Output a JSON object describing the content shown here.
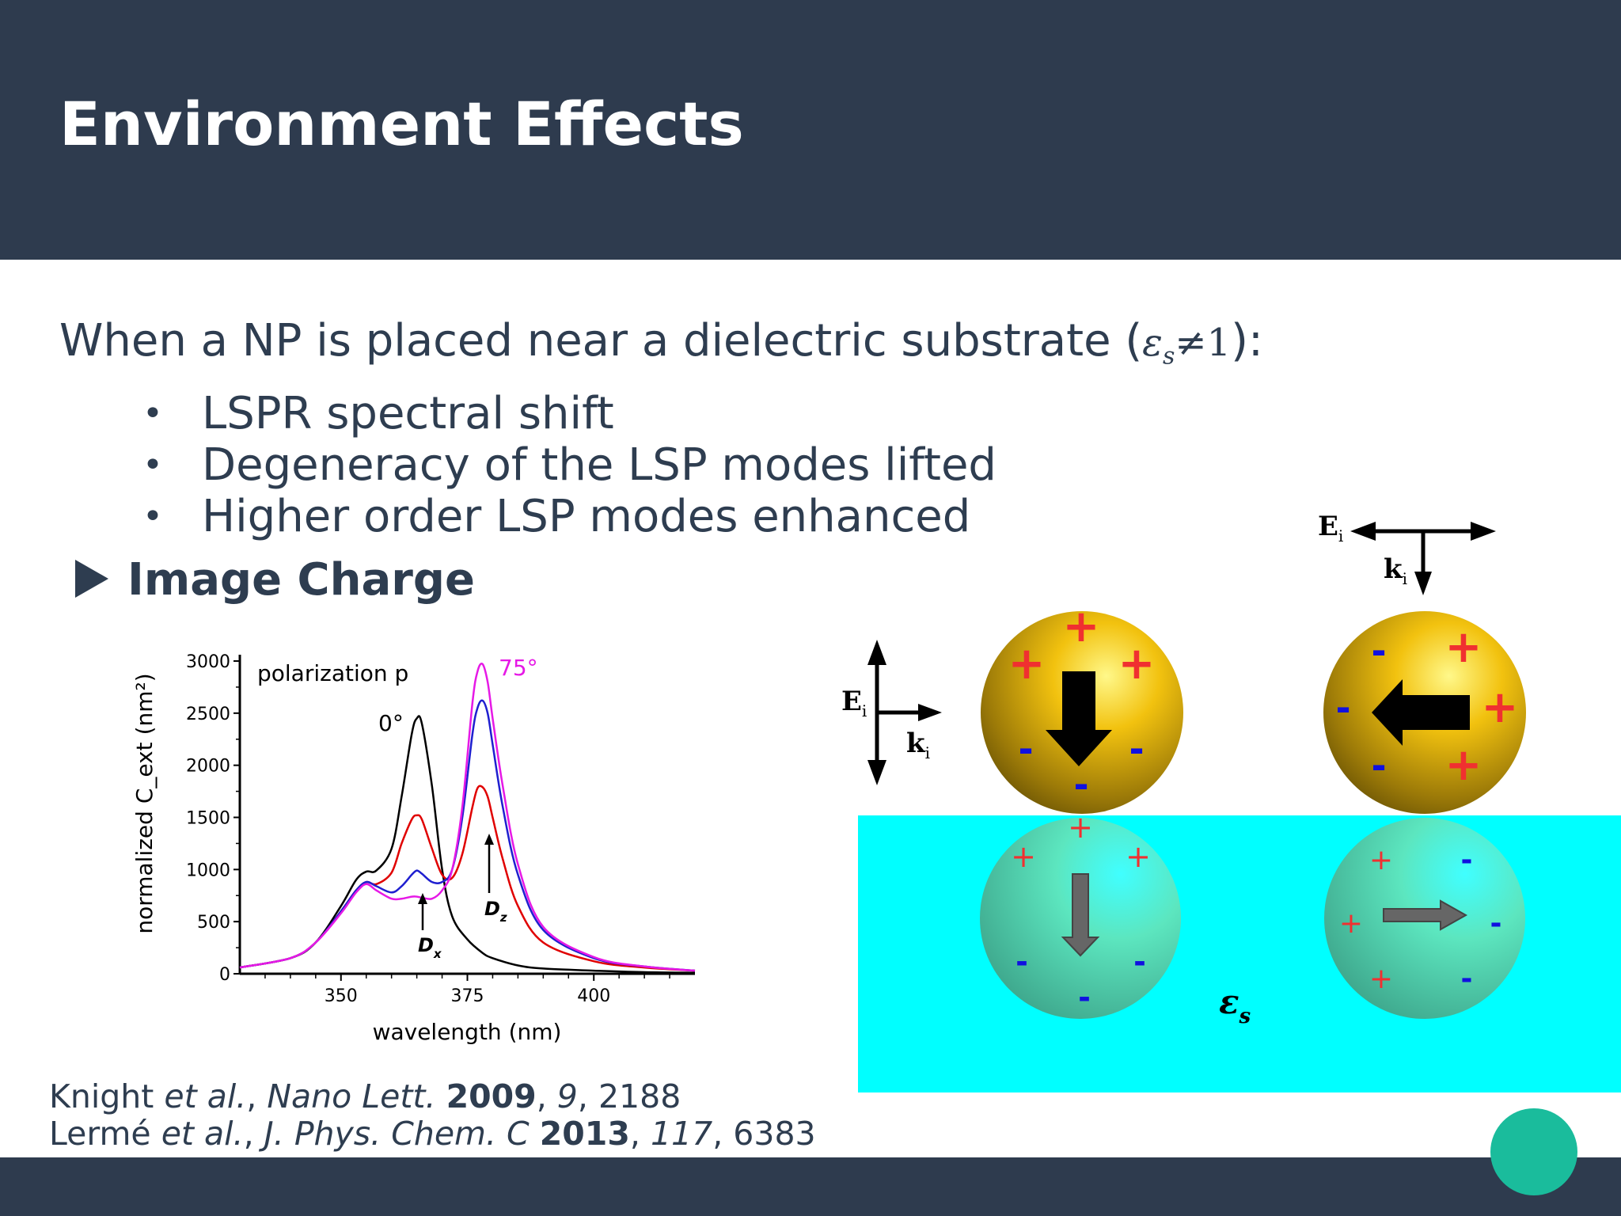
{
  "slide": {
    "title": "Environment Effects",
    "intro_text": "When a NP is placed near a dielectric substrate (",
    "intro_eps": "ε",
    "intro_eps_sub": "s",
    "intro_neq": "≠1",
    "intro_end": "):",
    "bullets": [
      "LSPR spectral shift",
      "Degeneracy of the LSP modes lifted",
      "Higher order LSP modes enhanced"
    ],
    "subheading": "Image Charge"
  },
  "references": [
    {
      "authors": "Knight ",
      "etal": "et al.",
      "sep": ", ",
      "journal": "Nano Lett.",
      "year": "2009",
      "volume": "9",
      "pages": "2188"
    },
    {
      "authors": "Lermé ",
      "etal": "et al.",
      "sep": ", ",
      "journal": "J. Phys. Chem. C",
      "year": "2013",
      "volume": "117",
      "pages": "6383"
    }
  ],
  "chart_data": {
    "type": "line",
    "title": "",
    "inline_label": "polarization p",
    "xlabel": "wavelength (nm)",
    "ylabel": "normalized C_ext (nm²)",
    "xlim": [
      330,
      420
    ],
    "ylim": [
      0,
      3000
    ],
    "x_ticks": [
      350,
      375,
      400
    ],
    "y_ticks": [
      0,
      500,
      1000,
      1500,
      2000,
      2500,
      3000
    ],
    "grid": false,
    "annotations": [
      {
        "text": "0°",
        "color": "#000000"
      },
      {
        "text": "75°",
        "color": "#e619e6"
      },
      {
        "text": "D",
        "sub": "x"
      },
      {
        "text": "D",
        "sub": "z"
      }
    ],
    "series": [
      {
        "color": "#000000",
        "x": [
          330,
          340,
          345,
          350,
          353,
          355,
          357,
          360,
          362,
          364,
          365,
          366,
          368,
          370,
          372,
          375,
          378,
          380,
          385,
          390,
          400,
          410,
          420
        ],
        "y": [
          60,
          150,
          300,
          650,
          900,
          980,
          990,
          1200,
          1700,
          2300,
          2450,
          2400,
          1800,
          1000,
          550,
          330,
          200,
          150,
          80,
          50,
          30,
          15,
          10
        ]
      },
      {
        "color": "#e00000",
        "x": [
          330,
          340,
          345,
          350,
          353,
          355,
          357,
          360,
          362,
          364,
          365,
          366,
          368,
          370,
          372,
          374,
          376,
          377,
          378,
          379,
          380,
          382,
          385,
          390,
          400,
          410,
          420
        ],
        "y": [
          60,
          150,
          300,
          600,
          800,
          880,
          860,
          970,
          1250,
          1480,
          1520,
          1480,
          1200,
          950,
          920,
          1150,
          1600,
          1780,
          1790,
          1700,
          1500,
          1100,
          650,
          300,
          120,
          60,
          30
        ]
      },
      {
        "color": "#1f1fd0",
        "x": [
          330,
          340,
          345,
          350,
          353,
          355,
          357,
          360,
          362,
          364,
          365,
          366,
          368,
          370,
          372,
          374,
          376,
          377,
          378,
          379,
          380,
          382,
          385,
          390,
          400,
          410,
          420
        ],
        "y": [
          60,
          150,
          300,
          600,
          800,
          880,
          840,
          780,
          840,
          950,
          990,
          960,
          880,
          880,
          1000,
          1500,
          2300,
          2550,
          2620,
          2500,
          2200,
          1600,
          950,
          420,
          150,
          70,
          30
        ]
      },
      {
        "color": "#e619e6",
        "x": [
          330,
          340,
          345,
          350,
          353,
          355,
          357,
          360,
          362,
          364,
          365,
          366,
          368,
          370,
          372,
          374,
          376,
          377,
          378,
          379,
          380,
          382,
          385,
          390,
          400,
          410,
          420
        ],
        "y": [
          60,
          150,
          300,
          580,
          780,
          860,
          800,
          720,
          720,
          740,
          740,
          730,
          720,
          800,
          1000,
          1600,
          2600,
          2900,
          2970,
          2800,
          2450,
          1800,
          1050,
          450,
          160,
          70,
          30
        ]
      }
    ]
  },
  "diagram": {
    "e_label": "E",
    "k_label": "k",
    "sub_label": "i",
    "substrate_label": "ε",
    "substrate_sub": "s",
    "plus": "+",
    "minus": "-",
    "colors": {
      "substrate": "#00ffff",
      "gold": "#f2c20f",
      "image_sphere": "#5ce6bf",
      "plus": "#f03030",
      "minus": "#1010e0"
    }
  }
}
